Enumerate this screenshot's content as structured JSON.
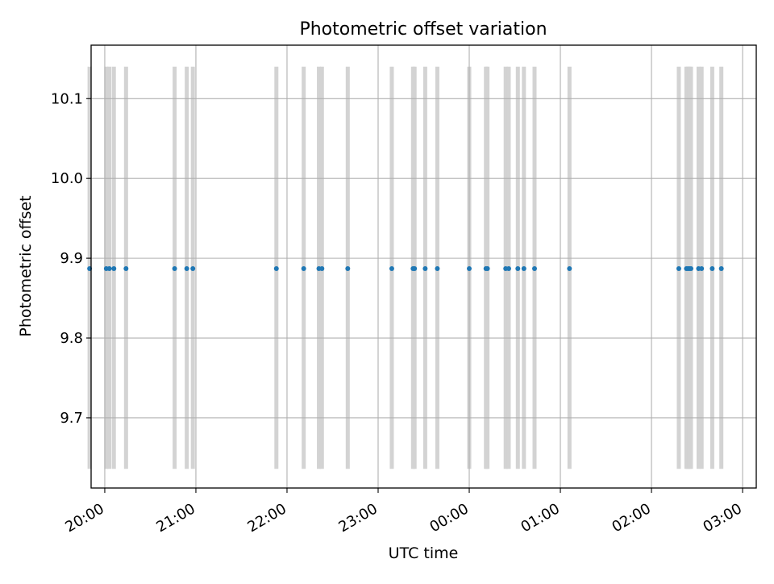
{
  "chart_data": {
    "type": "scatter",
    "title": "Photometric offset variation",
    "xlabel": "UTC time",
    "ylabel": "Photometric offset",
    "x_ticks": [
      "20:00",
      "21:00",
      "22:00",
      "23:00",
      "00:00",
      "01:00",
      "02:00",
      "03:00"
    ],
    "y_ticks": [
      "9.7",
      "9.8",
      "9.9",
      "10.0",
      "10.1"
    ],
    "x_range": [
      "19:51",
      "03:09"
    ],
    "ylim": [
      9.612,
      10.167
    ],
    "band_ylim": [
      9.636,
      10.14
    ],
    "grid": true,
    "legend": "none",
    "colors": {
      "points": "#1f77b4",
      "bands": "#d3d3d3",
      "grid": "#b0b0b0"
    },
    "points": [
      {
        "x": "19:50",
        "y": 9.887
      },
      {
        "x": "20:01",
        "y": 9.887
      },
      {
        "x": "20:03",
        "y": 9.887
      },
      {
        "x": "20:06",
        "y": 9.887
      },
      {
        "x": "20:14",
        "y": 9.887
      },
      {
        "x": "20:46",
        "y": 9.887
      },
      {
        "x": "20:54",
        "y": 9.887
      },
      {
        "x": "20:58",
        "y": 9.887
      },
      {
        "x": "21:53",
        "y": 9.887
      },
      {
        "x": "22:11",
        "y": 9.887
      },
      {
        "x": "22:21",
        "y": 9.887
      },
      {
        "x": "22:23",
        "y": 9.887
      },
      {
        "x": "22:40",
        "y": 9.887
      },
      {
        "x": "23:09",
        "y": 9.887
      },
      {
        "x": "23:23",
        "y": 9.887
      },
      {
        "x": "23:24",
        "y": 9.887
      },
      {
        "x": "23:31",
        "y": 9.887
      },
      {
        "x": "23:39",
        "y": 9.887
      },
      {
        "x": "00:00",
        "y": 9.887
      },
      {
        "x": "00:11",
        "y": 9.887
      },
      {
        "x": "00:12",
        "y": 9.887
      },
      {
        "x": "00:24",
        "y": 9.887
      },
      {
        "x": "00:26",
        "y": 9.887
      },
      {
        "x": "00:32",
        "y": 9.887
      },
      {
        "x": "00:36",
        "y": 9.887
      },
      {
        "x": "00:43",
        "y": 9.887
      },
      {
        "x": "01:06",
        "y": 9.887
      },
      {
        "x": "02:18",
        "y": 9.887
      },
      {
        "x": "02:23",
        "y": 9.887
      },
      {
        "x": "02:24",
        "y": 9.887
      },
      {
        "x": "02:25",
        "y": 9.887
      },
      {
        "x": "02:26",
        "y": 9.887
      },
      {
        "x": "02:31",
        "y": 9.887
      },
      {
        "x": "02:33",
        "y": 9.887
      },
      {
        "x": "02:40",
        "y": 9.887
      },
      {
        "x": "02:46",
        "y": 9.887
      }
    ]
  }
}
